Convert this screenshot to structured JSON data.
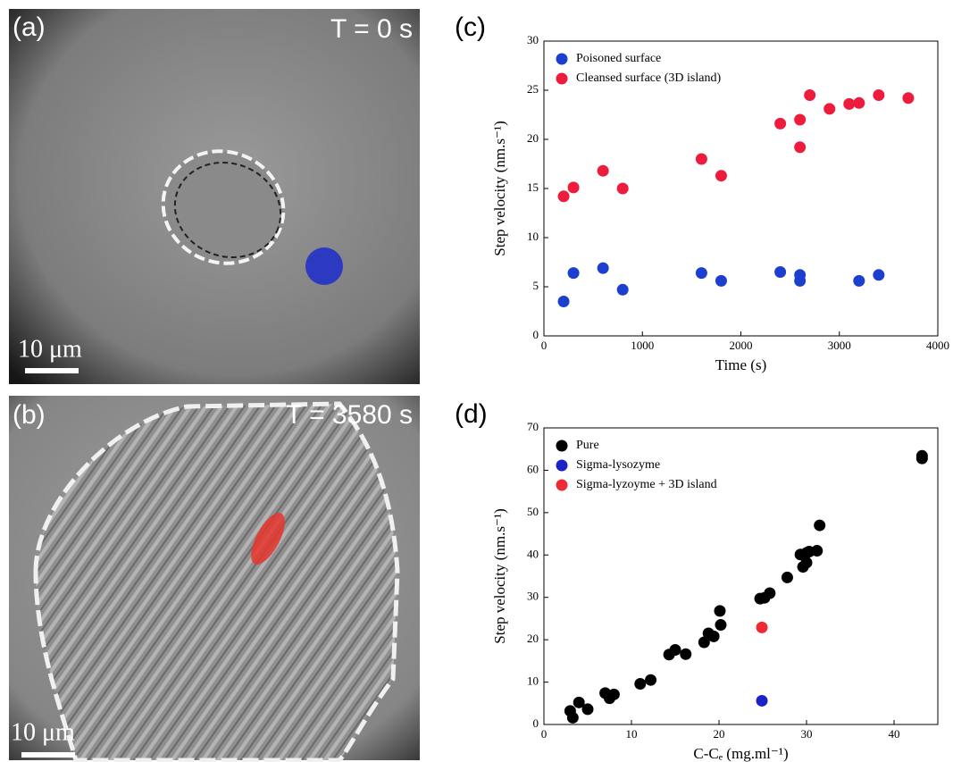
{
  "images": [
    {
      "label": "(a)",
      "time": "T = 0 s",
      "scale_bar": "10 μm"
    },
    {
      "label": "(b)",
      "time": "T = 3580 s",
      "scale_bar": "10 μm"
    }
  ],
  "chart_data": [
    {
      "type": "scatter",
      "panel_label": "(c)",
      "x_label": "Time (s)",
      "y_label": "Step velocity (nm.s⁻¹)",
      "xlim": [
        0,
        4000
      ],
      "xticks": [
        0,
        1000,
        2000,
        3000,
        4000
      ],
      "ylim": [
        0,
        30
      ],
      "yticks": [
        0,
        5,
        10,
        15,
        20,
        25,
        30
      ],
      "legend": "upper left",
      "series": [
        {
          "name": "Poisoned surface",
          "color": "#1c3fd0",
          "x": [
            200,
            300,
            600,
            800,
            1600,
            1800,
            2400,
            2600,
            2600,
            3200,
            3400
          ],
          "values": [
            3.5,
            6.4,
            6.9,
            4.7,
            6.4,
            5.6,
            6.5,
            6.2,
            5.6,
            5.6,
            6.2
          ]
        },
        {
          "name": "Cleansed surface (3D island)",
          "color": "#ee1c3c",
          "x": [
            200,
            300,
            600,
            800,
            1600,
            1800,
            2400,
            2600,
            2600,
            2700,
            2900,
            3100,
            3200,
            3400,
            3700
          ],
          "values": [
            14.2,
            15.1,
            16.8,
            15.0,
            18.0,
            16.3,
            21.6,
            22.0,
            19.2,
            24.5,
            23.1,
            23.6,
            23.7,
            24.5,
            24.2
          ]
        }
      ]
    },
    {
      "type": "scatter",
      "panel_label": "(d)",
      "x_label": "C-Cₑ (mg.ml⁻¹)",
      "y_label": "Step velocity (nm.s⁻¹)",
      "xlim": [
        0,
        45
      ],
      "xticks": [
        0,
        10,
        20,
        30,
        40
      ],
      "ylim": [
        0,
        70
      ],
      "yticks": [
        0,
        10,
        20,
        30,
        40,
        50,
        60,
        70
      ],
      "legend": "upper left",
      "series": [
        {
          "name": "Pure",
          "color": "#000000",
          "x": [
            3,
            3.3,
            4,
            5,
            7,
            7.5,
            8,
            11,
            12.2,
            14.3,
            15,
            16.2,
            18.3,
            18.8,
            19.4,
            20.1,
            20.2,
            24.7,
            25.2,
            25.8,
            27.8,
            29.3,
            29.6,
            30,
            30,
            30.3,
            31.2,
            31.5,
            43.2,
            43.2
          ],
          "values": [
            3.2,
            1.6,
            5.2,
            3.6,
            7.4,
            6.2,
            7.1,
            9.6,
            10.5,
            16.5,
            17.6,
            16.6,
            19.4,
            21.5,
            20.8,
            26.8,
            23.5,
            29.7,
            29.9,
            31,
            34.7,
            40.1,
            37.2,
            38.2,
            40.5,
            40.8,
            41,
            47,
            63.4,
            62.8
          ]
        },
        {
          "name": "Sigma-lysozyme",
          "color": "#1c22c8",
          "x": [
            24.9
          ],
          "values": [
            5.6
          ]
        },
        {
          "name": "Sigma-lyzoyme + 3D island",
          "color": "#ee2a35",
          "x": [
            24.9
          ],
          "values": [
            22.9
          ]
        }
      ]
    }
  ]
}
